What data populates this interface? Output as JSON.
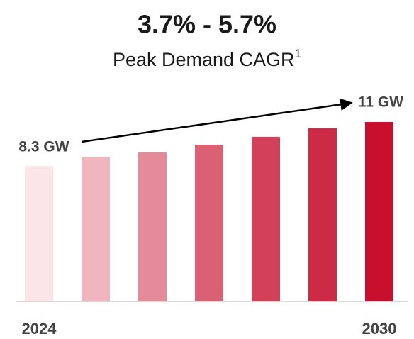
{
  "chart_data": {
    "type": "bar",
    "title": "3.7% - 5.7%",
    "subtitle": "Peak Demand CAGR",
    "subtitle_superscript": "1",
    "categories": [
      "2024",
      null,
      null,
      null,
      null,
      null,
      "2030"
    ],
    "values": [
      8.3,
      8.83,
      9.13,
      9.61,
      10.09,
      10.61,
      11
    ],
    "value_labels": [
      "8.3 GW",
      null,
      null,
      null,
      null,
      null,
      "11 GW"
    ],
    "colors": [
      "#fbe5e7",
      "#efb6c0",
      "#e48a98",
      "#da6074",
      "#d34059",
      "#cc2a45",
      "#c8102e"
    ],
    "ylim": [
      0,
      11
    ]
  }
}
